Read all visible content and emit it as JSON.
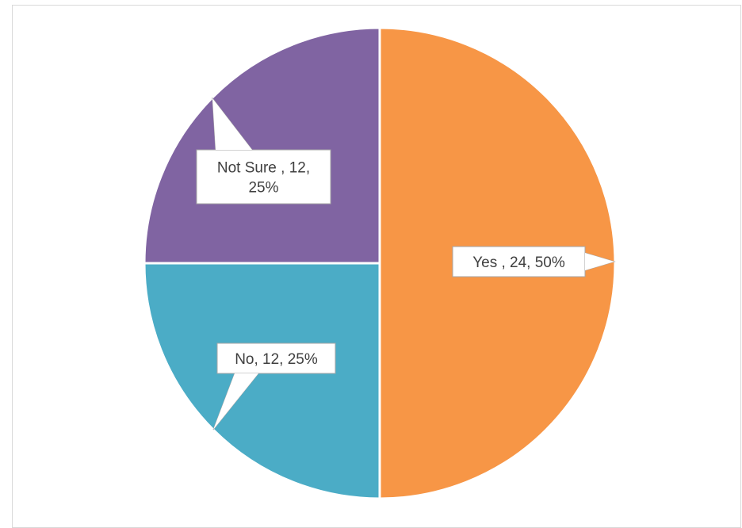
{
  "chart_data": {
    "type": "pie",
    "title": "",
    "categories": [
      "Yes ",
      "No",
      "Not Sure "
    ],
    "values": [
      24,
      12,
      12
    ],
    "percentages": [
      50,
      25,
      25
    ],
    "colors": [
      "#F79646",
      "#4BACC6",
      "#8064A2"
    ],
    "start_angle_deg": 0,
    "direction": "clockwise",
    "legend": "none",
    "data_labels": [
      {
        "lines": [
          "Yes , 24, 50%"
        ]
      },
      {
        "lines": [
          "No, 12, 25%"
        ]
      },
      {
        "lines": [
          "Not Sure , 12,",
          "25%"
        ]
      }
    ]
  }
}
